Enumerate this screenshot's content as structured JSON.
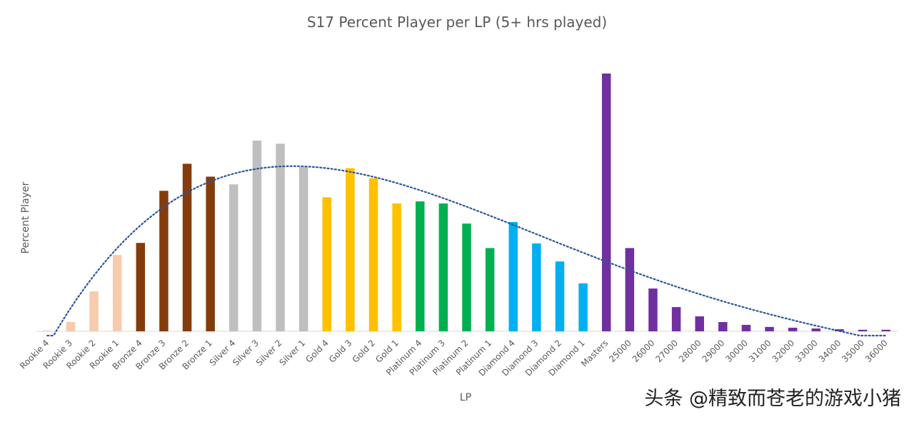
{
  "watermark": "头条 @精致而苍老的游戏小猪",
  "chart_data": {
    "type": "bar",
    "title": "S17 Percent Player per LP (5+ hrs played)",
    "xlabel": "LP",
    "ylabel": "Percent Player",
    "ylim": [
      0,
      100
    ],
    "grid": false,
    "legend": "none",
    "trendline": {
      "type": "polynomial",
      "style": "dotted",
      "color": "#2E5597"
    },
    "categories": [
      "Rookie 4",
      "Rookie 3",
      "Rookie 2",
      "Rookie 1",
      "Bronze 4",
      "Bronze 3",
      "Bronze 2",
      "Bronze 1",
      "Silver 4",
      "Silver 3",
      "Silver 2",
      "Silver 1",
      "Gold 4",
      "Gold 3",
      "Gold 2",
      "Gold 1",
      "Platinum 4",
      "Platinum 3",
      "Platinum 2",
      "Platinum 1",
      "Diamond 4",
      "Diamond 3",
      "Diamond 2",
      "Diamond 1",
      "Masters",
      "25000",
      "26000",
      "27000",
      "28000",
      "29000",
      "30000",
      "31000",
      "32000",
      "33000",
      "34000",
      "35000",
      "36000"
    ],
    "values": [
      0.3,
      3.6,
      15.5,
      29.6,
      34.3,
      54.5,
      65.0,
      60.0,
      57.0,
      74.0,
      72.8,
      63.7,
      52.0,
      63.3,
      59.4,
      49.6,
      50.4,
      49.6,
      41.8,
      32.3,
      42.4,
      34.1,
      27.1,
      18.6,
      100,
      32.3,
      16.6,
      9.4,
      5.8,
      3.6,
      2.5,
      1.7,
      1.4,
      1.1,
      0.8,
      0.6,
      0.6
    ],
    "colors": [
      "#F8CBAD",
      "#F8CBAD",
      "#F8CBAD",
      "#F8CBAD",
      "#843C0C",
      "#843C0C",
      "#843C0C",
      "#843C0C",
      "#BFBFBF",
      "#BFBFBF",
      "#BFBFBF",
      "#BFBFBF",
      "#FFC000",
      "#FFC000",
      "#FFC000",
      "#FFC000",
      "#00B050",
      "#00B050",
      "#00B050",
      "#00B050",
      "#00B0F0",
      "#00B0F0",
      "#00B0F0",
      "#00B0F0",
      "#7030A0",
      "#7030A0",
      "#7030A0",
      "#7030A0",
      "#7030A0",
      "#7030A0",
      "#7030A0",
      "#7030A0",
      "#7030A0",
      "#7030A0",
      "#7030A0",
      "#7030A0",
      "#7030A0"
    ]
  }
}
